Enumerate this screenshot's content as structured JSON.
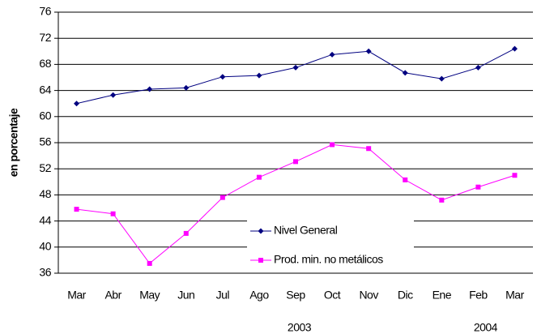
{
  "chart_data": {
    "type": "line",
    "y_label": "en porcentaje",
    "categories": [
      "Mar",
      "Abr",
      "May",
      "Jun",
      "Jul",
      "Ago",
      "Sep",
      "Oct",
      "Nov",
      "Dic",
      "Ene",
      "Feb",
      "Mar"
    ],
    "year_labels": [
      "2003",
      "2004"
    ],
    "series": [
      {
        "name": "Nivel General",
        "color": "#000080",
        "marker": "diamond",
        "values": [
          62.0,
          63.3,
          64.2,
          64.4,
          66.1,
          66.3,
          67.5,
          69.5,
          70.0,
          66.7,
          65.8,
          67.5,
          70.4
        ]
      },
      {
        "name": "Prod. min. no metálicos",
        "color": "#ff00ff",
        "marker": "square",
        "values": [
          45.8,
          45.1,
          37.5,
          42.1,
          47.6,
          50.7,
          53.1,
          55.7,
          55.1,
          50.3,
          47.2,
          49.2,
          51.0
        ]
      }
    ],
    "ylim": [
      36,
      76
    ],
    "yticks": [
      36,
      40,
      44,
      48,
      52,
      56,
      60,
      64,
      68,
      72,
      76
    ],
    "grid": true,
    "legend": "lower center"
  }
}
